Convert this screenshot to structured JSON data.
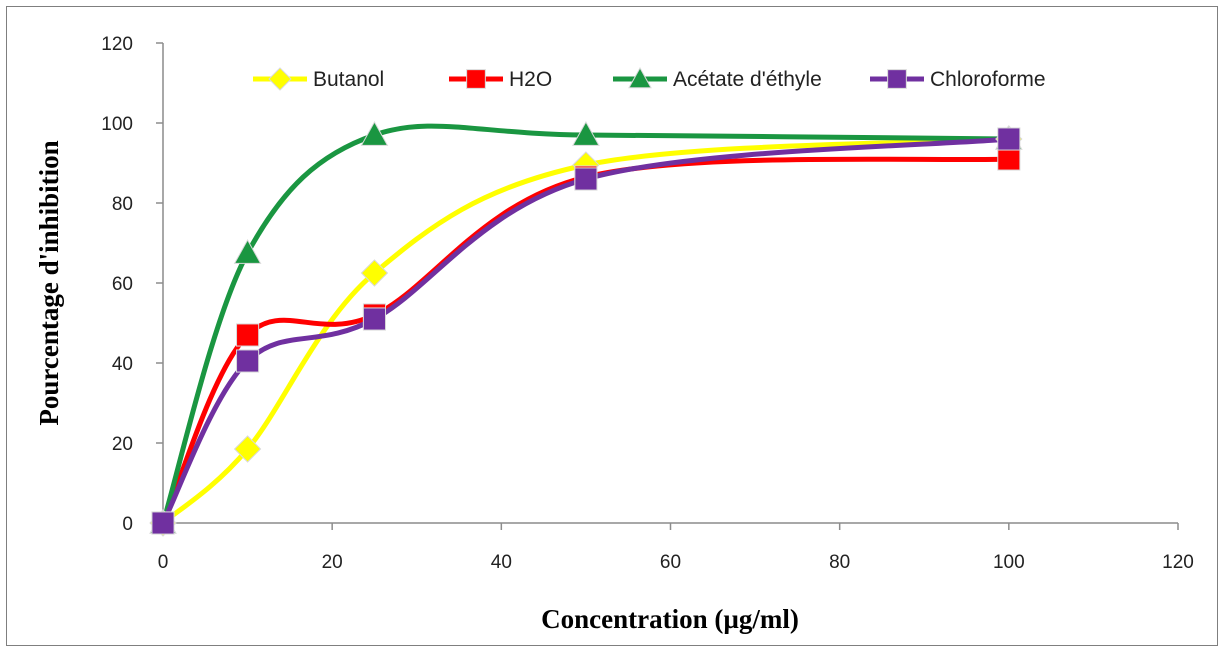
{
  "chart_data": {
    "type": "line",
    "title": "",
    "xlabel": "Concentration (µg/ml)",
    "ylabel": "Pourcentage d'inhibition",
    "xlim": [
      0,
      120
    ],
    "ylim": [
      0,
      120
    ],
    "x_ticks": [
      0,
      20,
      40,
      60,
      80,
      100,
      120
    ],
    "y_ticks": [
      0,
      20,
      40,
      60,
      80,
      100,
      120
    ],
    "grid": false,
    "smooth": true,
    "legend_position": "top",
    "x": [
      0,
      10,
      25,
      50,
      100
    ],
    "series": [
      {
        "name": "Butanol",
        "values": [
          0,
          18.5,
          62.5,
          89.5,
          96
        ],
        "color": "#ffff00",
        "marker": "diamond"
      },
      {
        "name": "H2O",
        "values": [
          0,
          47,
          52,
          86.5,
          91
        ],
        "color": "#ff0000",
        "marker": "square"
      },
      {
        "name": "Acétate d'éthyle",
        "values": [
          0,
          67.5,
          97,
          97,
          96
        ],
        "color": "#1a9641",
        "marker": "triangle"
      },
      {
        "name": "Chloroforme",
        "values": [
          0,
          40.5,
          51,
          86,
          96
        ],
        "color": "#7030a0",
        "marker": "square"
      }
    ]
  }
}
